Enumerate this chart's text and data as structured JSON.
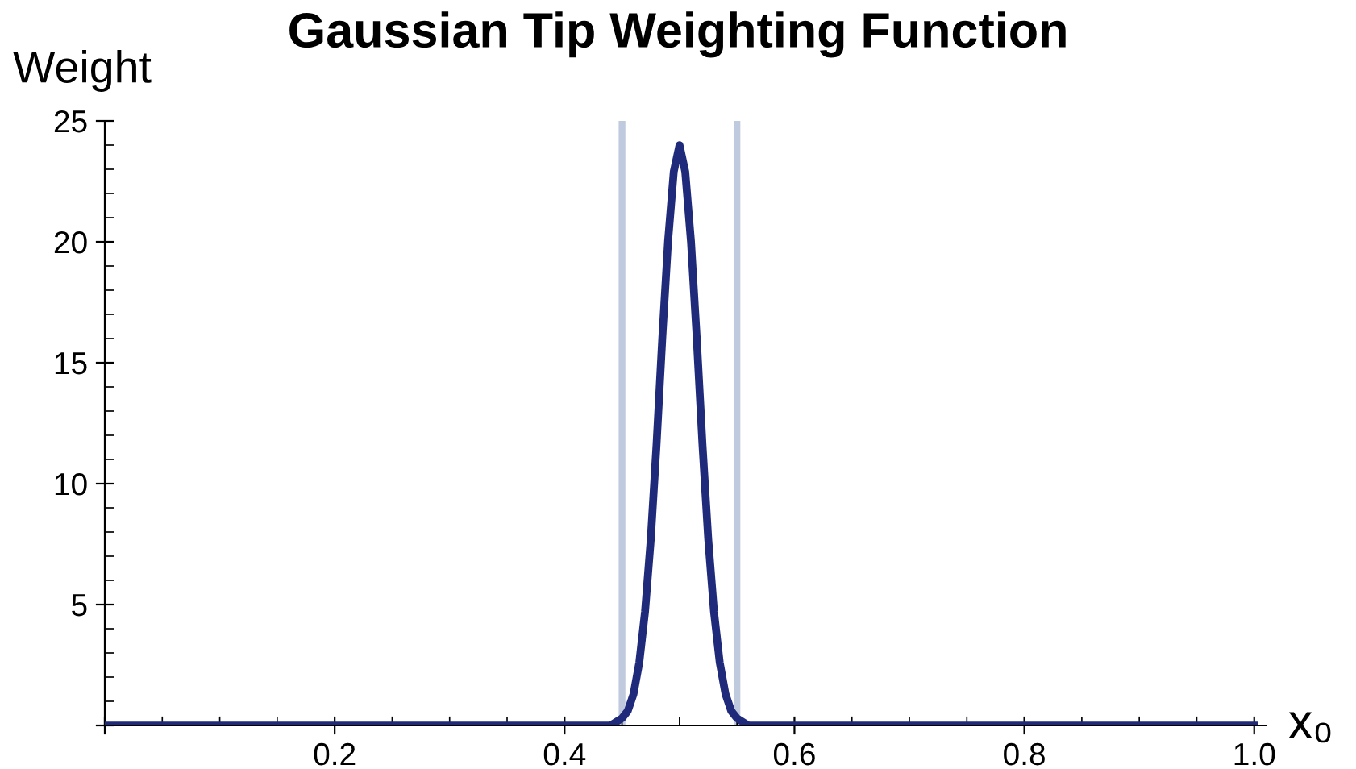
{
  "chart_data": {
    "type": "line",
    "title": "Gaussian Tip Weighting Function",
    "xlabel": "x₀",
    "ylabel": "Weight",
    "x": [
      0,
      0.1,
      0.2,
      0.3,
      0.4,
      0.44,
      0.45,
      0.455,
      0.46,
      0.465,
      0.47,
      0.475,
      0.48,
      0.485,
      0.49,
      0.495,
      0.5,
      0.505,
      0.51,
      0.515,
      0.52,
      0.525,
      0.53,
      0.535,
      0.54,
      0.545,
      0.55,
      0.56,
      0.6,
      0.7,
      0.8,
      0.9,
      1.0
    ],
    "series": [
      {
        "color": "#1f2a7a",
        "values": [
          0,
          0,
          0,
          0,
          0,
          0,
          0.3,
          0.6,
          1.3,
          2.6,
          4.7,
          7.7,
          11.6,
          16.0,
          20.0,
          22.9,
          24,
          22.9,
          20.0,
          16.0,
          11.6,
          7.7,
          4.7,
          2.6,
          1.3,
          0.6,
          0.3,
          0,
          0,
          0,
          0,
          0,
          0
        ]
      }
    ],
    "ref_lines": [
      {
        "axis": "x",
        "value": 0.45,
        "color": "#b8c4dc"
      },
      {
        "axis": "x",
        "value": 0.55,
        "color": "#b8c4dc"
      }
    ],
    "xlim": [
      0,
      1.01
    ],
    "ylim": [
      0,
      25
    ],
    "xticks": [
      {
        "value": 0,
        "label": null
      },
      0.2,
      0.4,
      0.6,
      0.8,
      {
        "value": 1.0,
        "label": "1.0"
      }
    ],
    "yticks": [
      {
        "value": 0,
        "label": null
      },
      5,
      10,
      15,
      20,
      25
    ],
    "grid": false,
    "legend": false
  }
}
